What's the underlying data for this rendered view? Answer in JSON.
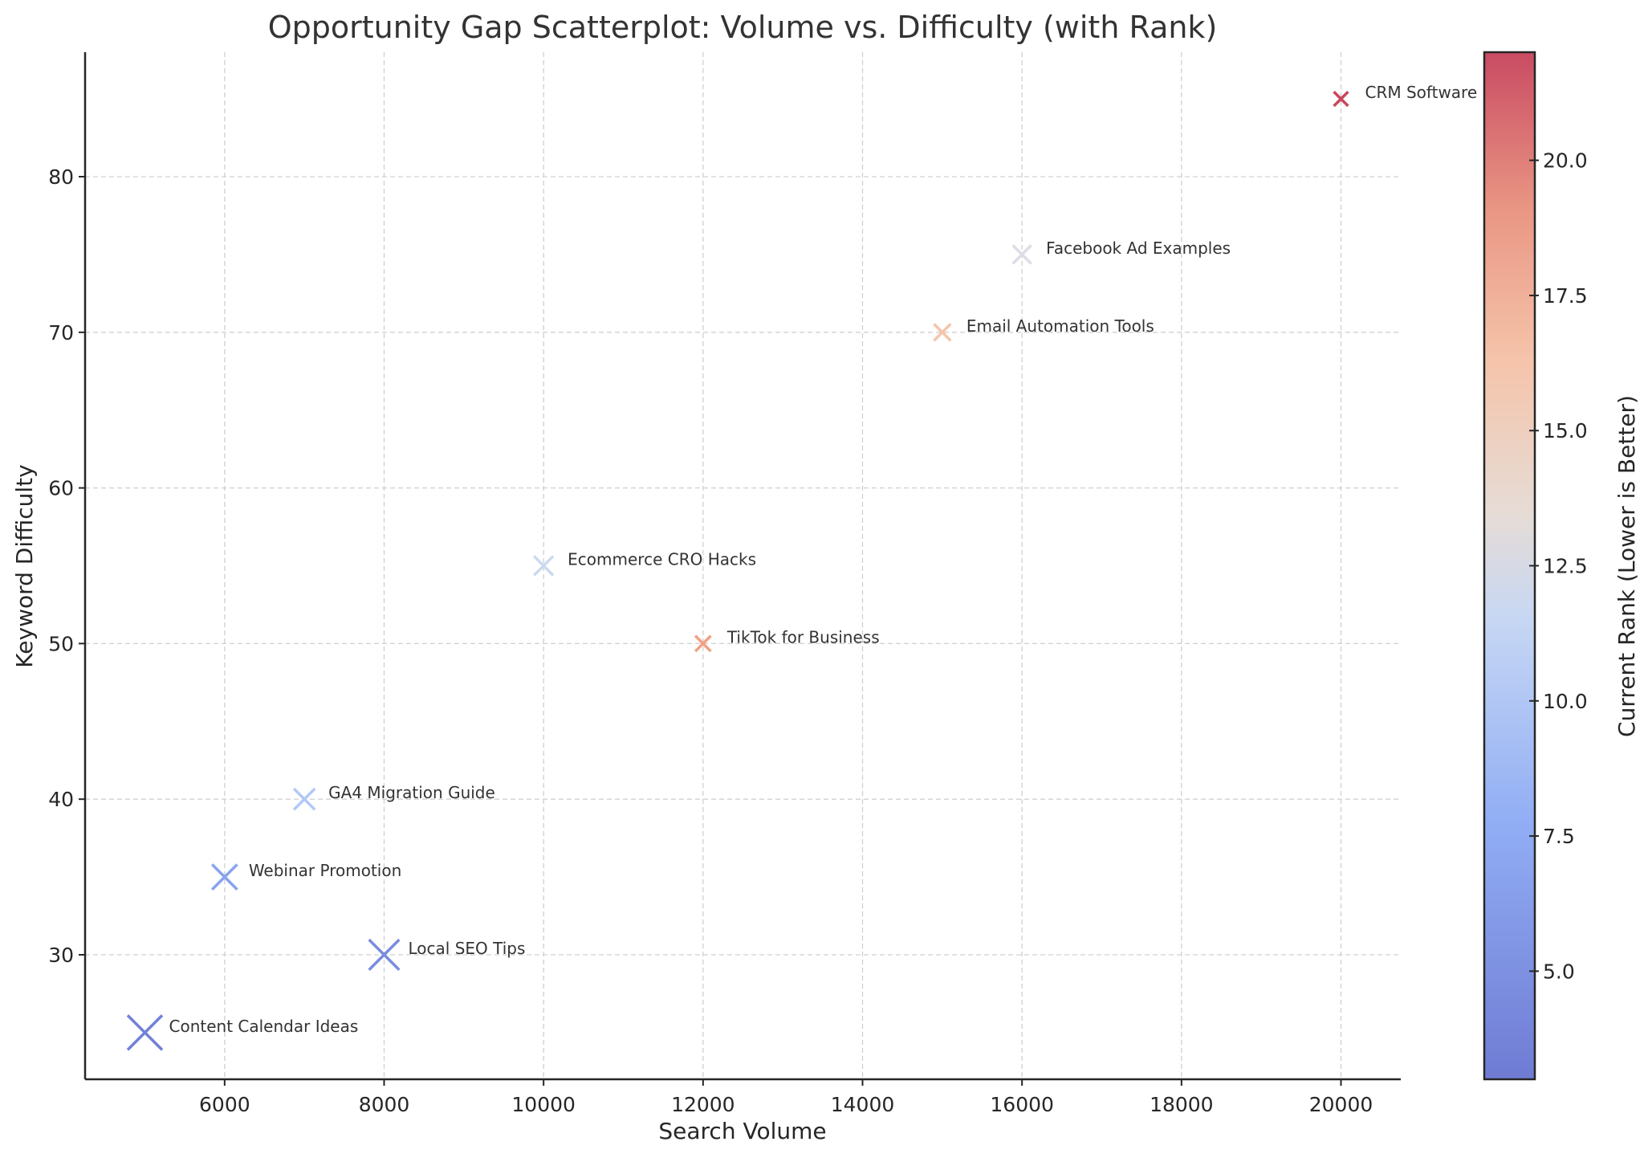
{
  "chart_data": {
    "type": "scatter",
    "title": "Opportunity Gap Scatterplot: Volume vs. Difficulty (with Rank)",
    "xlabel": "Search Volume",
    "ylabel": "Keyword Difficulty",
    "xlim": [
      4250,
      20750
    ],
    "ylim": [
      22,
      88
    ],
    "xticks": [
      "6000",
      "8000",
      "10000",
      "12000",
      "14000",
      "16000",
      "18000",
      "20000"
    ],
    "xtick_values": [
      6000,
      8000,
      10000,
      12000,
      14000,
      16000,
      18000,
      20000
    ],
    "yticks": [
      "30",
      "40",
      "50",
      "60",
      "70",
      "80"
    ],
    "ytick_values": [
      30,
      40,
      50,
      60,
      70,
      80
    ],
    "grid": true,
    "marker": "x",
    "colormap": "coolwarm",
    "colorbar": {
      "label": "Current Rank (Lower is Better)",
      "range": [
        3,
        22
      ],
      "ticks": [
        "5.0",
        "7.5",
        "10.0",
        "12.5",
        "15.0",
        "17.5",
        "20.0"
      ],
      "tick_values": [
        5,
        7.5,
        10,
        12.5,
        15,
        17.5,
        20
      ]
    },
    "points": [
      {
        "label": "Content Calendar Ideas",
        "x": 5000,
        "y": 25,
        "rank": 3,
        "color": "#7180d8"
      },
      {
        "label": "Webinar Promotion",
        "x": 6000,
        "y": 35,
        "rank": 6,
        "color": "#88a3ee"
      },
      {
        "label": "GA4 Migration Guide",
        "x": 7000,
        "y": 40,
        "rank": 9,
        "color": "#b2c9f9"
      },
      {
        "label": "Local SEO Tips",
        "x": 8000,
        "y": 30,
        "rank": 4,
        "color": "#7a8ce0"
      },
      {
        "label": "Ecommerce CRO Hacks",
        "x": 10000,
        "y": 55,
        "rank": 11,
        "color": "#cad9f2"
      },
      {
        "label": "TikTok for Business",
        "x": 12000,
        "y": 50,
        "rank": 18,
        "color": "#f1a085"
      },
      {
        "label": "Email Automation Tools",
        "x": 15000,
        "y": 70,
        "rank": 15,
        "color": "#f5c5ab"
      },
      {
        "label": "Facebook Ad Examples",
        "x": 16000,
        "y": 75,
        "rank": 12,
        "color": "#dcdde6"
      },
      {
        "label": "CRM Software",
        "x": 20000,
        "y": 85,
        "rank": 22,
        "color": "#c9465e"
      }
    ]
  }
}
